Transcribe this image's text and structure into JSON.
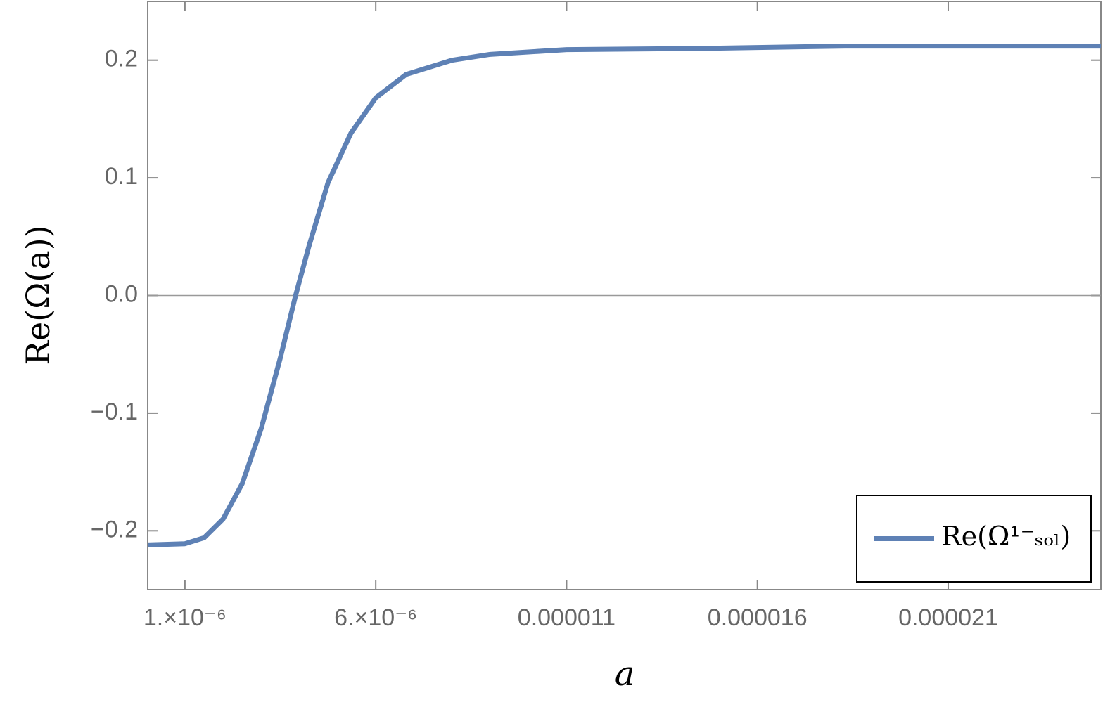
{
  "chart_data": {
    "type": "line",
    "xlabel": "a",
    "ylabel": "Re(Ω(a))",
    "x": [
      2.5e-08,
      1e-06,
      1.5e-06,
      2e-06,
      2.5e-06,
      3e-06,
      3.5e-06,
      3.9e-06,
      4.25e-06,
      4.75e-06,
      5.35e-06,
      6e-06,
      6.8e-06,
      8e-06,
      9e-06,
      1.1e-05,
      1.45e-05,
      1.83e-05,
      2.5e-05
    ],
    "series": [
      {
        "name": "Re(Ω¹⁻ₛₒₗ)",
        "color": "#5e81b5",
        "values": [
          -0.212,
          -0.211,
          -0.206,
          -0.19,
          -0.16,
          -0.113,
          -0.053,
          0.0,
          0.042,
          0.096,
          0.138,
          0.168,
          0.188,
          0.2,
          0.205,
          0.209,
          0.21,
          0.212,
          0.212
        ]
      }
    ],
    "xlim": [
      2.5e-08,
      2.5e-05
    ],
    "xticks": [
      {
        "value": 1e-06,
        "label": "1.×10⁻⁶"
      },
      {
        "value": 6e-06,
        "label": "6.×10⁻⁶"
      },
      1.1e-05,
      1.6e-05,
      2.1e-05
    ],
    "ylim": [
      -0.25,
      0.25
    ],
    "yticks": [
      {
        "value": -0.2,
        "label": "−0.2"
      },
      {
        "value": -0.1,
        "label": "−0.1"
      },
      {
        "value": 0,
        "label": "0.0"
      },
      0.1,
      0.2
    ],
    "legend": "bottom-right"
  }
}
